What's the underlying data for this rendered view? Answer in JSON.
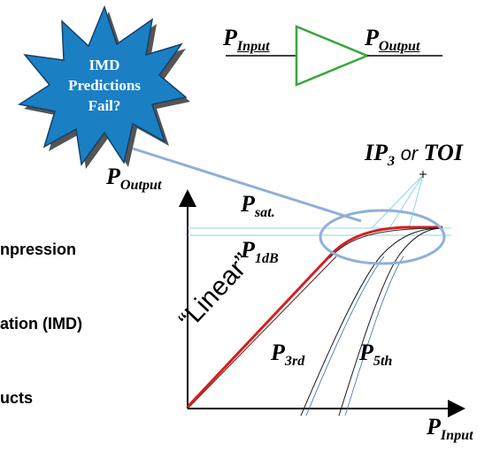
{
  "burst": {
    "line1": "IMD",
    "line2": "Predictions",
    "line3": "Fail?",
    "fill": "#1b7fc4"
  },
  "amplifier": {
    "input_label": "P",
    "input_sub": "Input",
    "output_label": "P",
    "output_sub": "Output",
    "triangle_color": "#3aa63a"
  },
  "graph": {
    "y_axis_label": "P",
    "y_axis_sub": "Output",
    "x_axis_label": "P",
    "x_axis_sub": "Input",
    "psat_label": "P",
    "psat_sub": "sat.",
    "p1db_label": "P",
    "p1db_sub": "1dB",
    "linear_label": "“Linear”",
    "p3rd_label": "P",
    "p3rd_sub": "3rd",
    "p5th_label": "P",
    "p5th_sub": "5th",
    "ip3_label": "IP",
    "ip3_sub": "3",
    "ip3_or": "or",
    "ip3_toi": "TOI",
    "linear_color": "#d42020",
    "guide_color": "#8fd4e6",
    "ellipse_color": "#8fb0d8"
  },
  "left_text": {
    "line1": "npression",
    "line2": "ation (IMD)",
    "line3": "ucts"
  }
}
